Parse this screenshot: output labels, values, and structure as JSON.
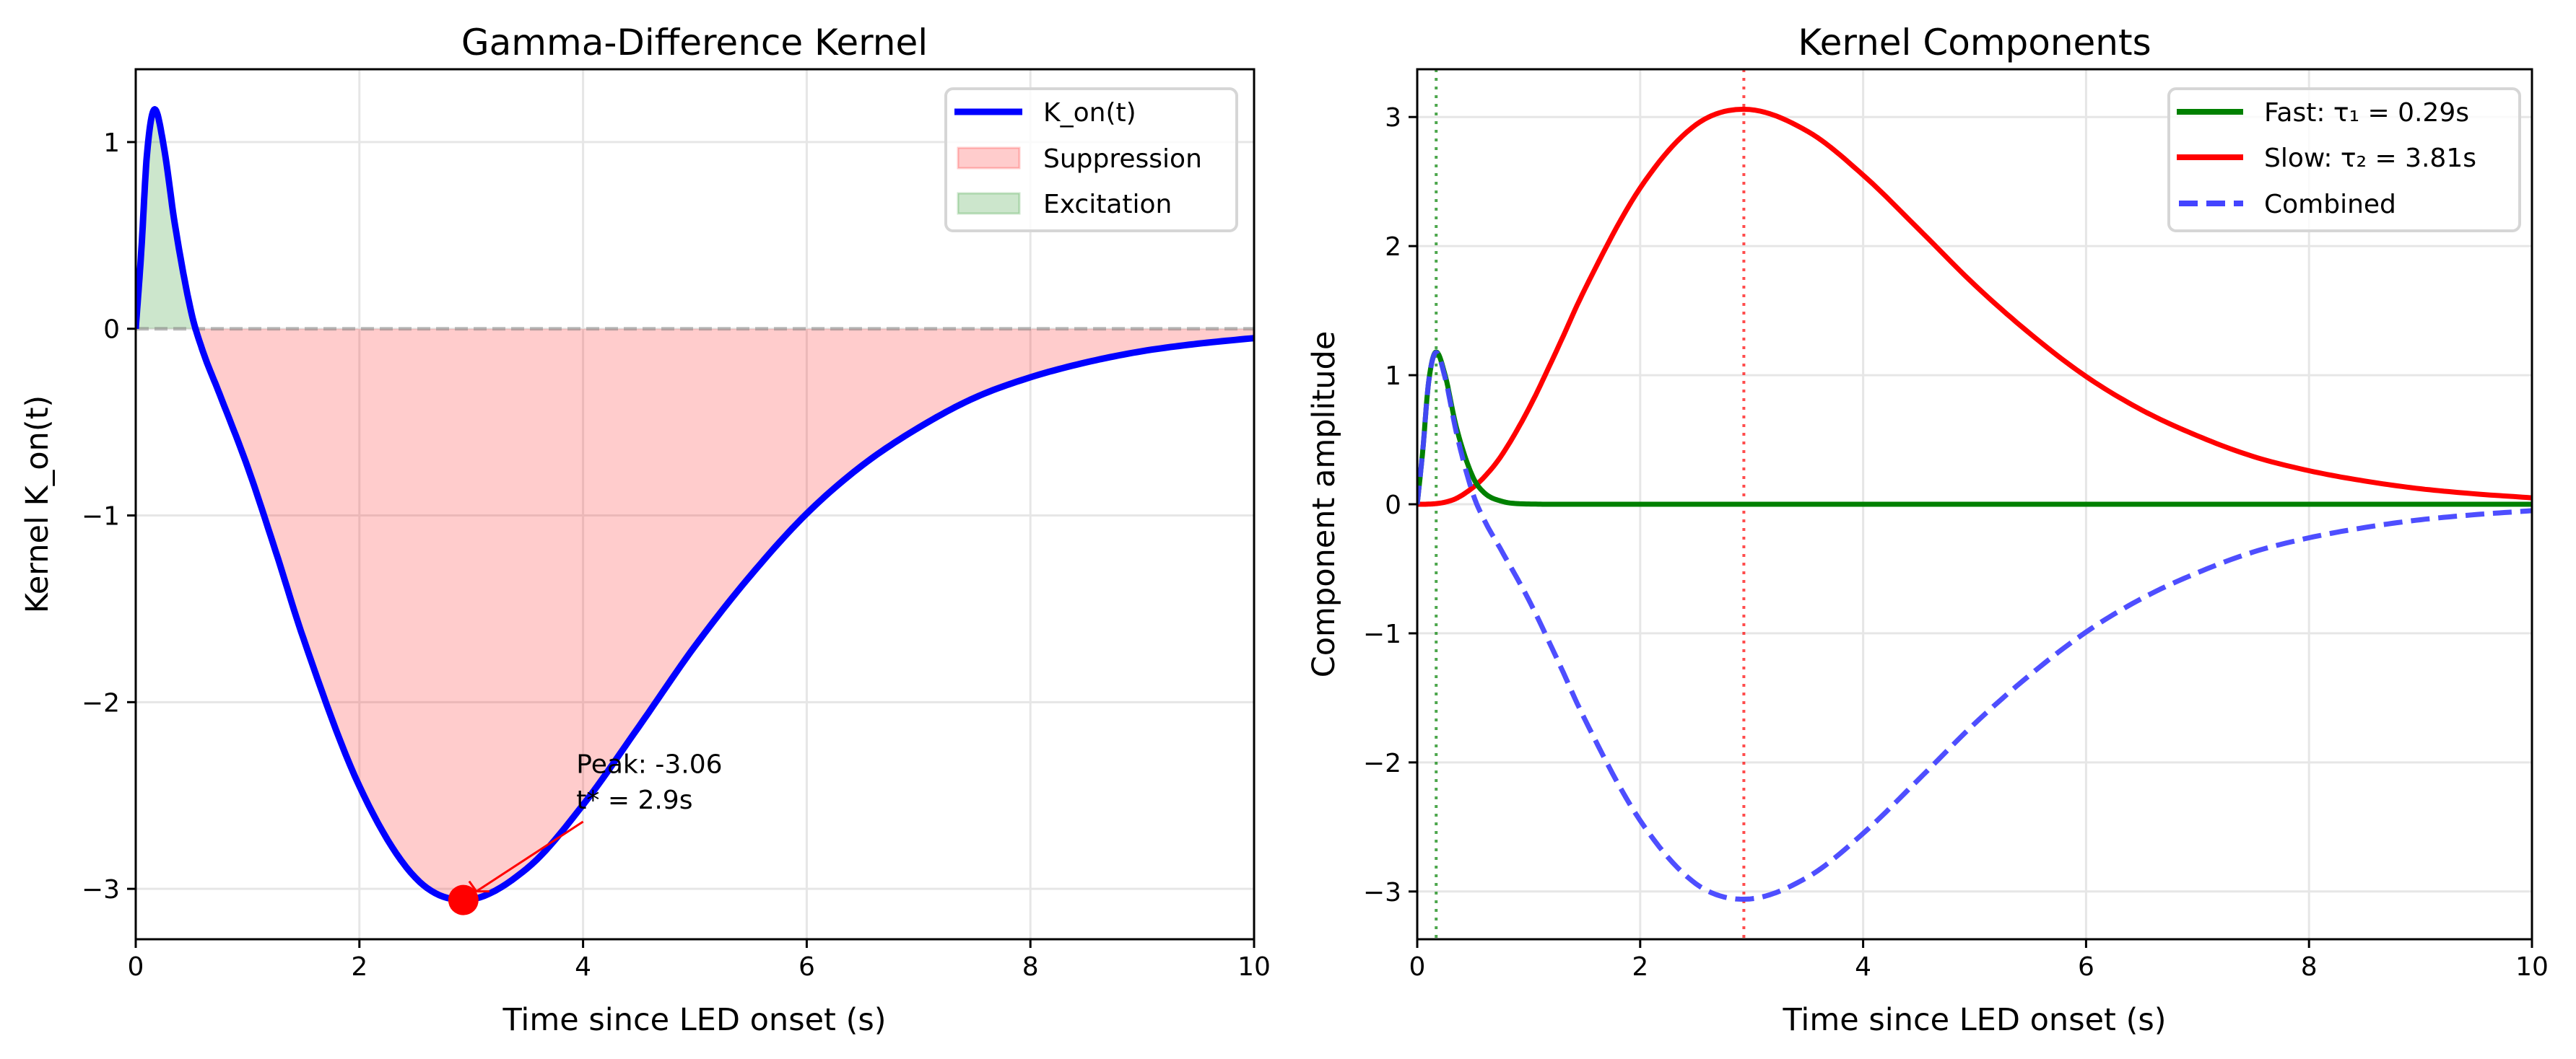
{
  "chart_data": [
    {
      "type": "line",
      "title": "Gamma-Difference Kernel",
      "xlabel": "Time since LED onset (s)",
      "ylabel": "Kernel K_on(t)",
      "xlim": [
        0,
        10
      ],
      "ylim": [
        -3.27,
        1.39
      ],
      "xticks": [
        0,
        2,
        4,
        6,
        8,
        10
      ],
      "yticks": [
        -3,
        -2,
        -1,
        0,
        1
      ],
      "xtick_labels": [
        "0",
        "2",
        "4",
        "6",
        "8",
        "10"
      ],
      "ytick_labels": [
        "−3",
        "−2",
        "−1",
        "0",
        "1"
      ],
      "grid": true,
      "legend_position": "upper right",
      "x": [
        0,
        0.05,
        0.1,
        0.17,
        0.25,
        0.35,
        0.5,
        0.6,
        0.75,
        1,
        1.25,
        1.5,
        2,
        2.5,
        2.93,
        3.5,
        4,
        4.5,
        5,
        5.5,
        6,
        6.5,
        7,
        7.5,
        8,
        8.5,
        9,
        9.5,
        10
      ],
      "series": [
        {
          "name": "K_on(t)",
          "color": "#0000ff",
          "style": "solid",
          "values": [
            0,
            0.42,
            0.93,
            1.175,
            0.98,
            0.56,
            0.08,
            -0.12,
            -0.35,
            -0.74,
            -1.19,
            -1.66,
            -2.45,
            -2.94,
            -3.06,
            -2.89,
            -2.55,
            -2.13,
            -1.7,
            -1.32,
            -0.99,
            -0.73,
            -0.53,
            -0.37,
            -0.26,
            -0.18,
            -0.12,
            -0.08,
            -0.05
          ]
        }
      ],
      "fills": [
        {
          "name": "Suppression",
          "color": "#ff0000",
          "region": "below zero"
        },
        {
          "name": "Excitation",
          "color": "#008000",
          "region": "above zero"
        }
      ],
      "reference_line": {
        "y": 0,
        "color": "#808080",
        "style": "dashed"
      },
      "annotation": {
        "lines": [
          "Peak: -3.06",
          "t* = 2.9s"
        ],
        "point": [
          2.93,
          -3.06
        ],
        "color": "#ff0000"
      }
    },
    {
      "type": "line",
      "title": "Kernel Components",
      "xlabel": "Time since LED onset (s)",
      "ylabel": "Component amplitude",
      "xlim": [
        0,
        10
      ],
      "ylim": [
        -3.37,
        3.37
      ],
      "xticks": [
        0,
        2,
        4,
        6,
        8,
        10
      ],
      "yticks": [
        -3,
        -2,
        -1,
        0,
        1,
        2,
        3
      ],
      "xtick_labels": [
        "0",
        "2",
        "4",
        "6",
        "8",
        "10"
      ],
      "ytick_labels": [
        "−3",
        "−2",
        "−1",
        "0",
        "1",
        "2",
        "3"
      ],
      "grid": true,
      "legend_position": "upper right",
      "x": [
        0,
        0.05,
        0.1,
        0.17,
        0.25,
        0.35,
        0.5,
        0.6,
        0.75,
        1,
        1.25,
        1.5,
        2,
        2.5,
        2.93,
        3.5,
        4,
        4.5,
        5,
        5.5,
        6,
        6.5,
        7,
        7.5,
        8,
        8.5,
        9,
        9.5,
        10
      ],
      "series": [
        {
          "name": "Fast: τ₁ = 0.29s",
          "color": "#008000",
          "style": "solid",
          "values": [
            0,
            0.42,
            0.93,
            1.18,
            1.0,
            0.6,
            0.21,
            0.09,
            0.025,
            0.002,
            0,
            0,
            0,
            0,
            0,
            0,
            0,
            0,
            0,
            0,
            0,
            0,
            0,
            0,
            0,
            0,
            0,
            0,
            0
          ]
        },
        {
          "name": "Slow: τ₂ = 3.81s",
          "color": "#ff0000",
          "style": "solid",
          "values": [
            0,
            0,
            0.001,
            0.005,
            0.016,
            0.045,
            0.13,
            0.21,
            0.37,
            0.74,
            1.19,
            1.66,
            2.45,
            2.94,
            3.06,
            2.89,
            2.55,
            2.13,
            1.7,
            1.32,
            0.99,
            0.73,
            0.53,
            0.37,
            0.26,
            0.18,
            0.12,
            0.08,
            0.05
          ]
        },
        {
          "name": "Combined",
          "color": "#4444ff",
          "style": "dashed",
          "values": [
            0,
            0.42,
            0.93,
            1.175,
            0.98,
            0.56,
            0.08,
            -0.12,
            -0.35,
            -0.74,
            -1.19,
            -1.66,
            -2.45,
            -2.94,
            -3.06,
            -2.89,
            -2.55,
            -2.13,
            -1.7,
            -1.32,
            -0.99,
            -0.73,
            -0.53,
            -0.37,
            -0.26,
            -0.18,
            -0.12,
            -0.08,
            -0.05
          ]
        }
      ],
      "vlines": [
        {
          "x": 0.17,
          "color": "#008000",
          "style": "dotted"
        },
        {
          "x": 2.93,
          "color": "#ff0000",
          "style": "dotted"
        }
      ]
    }
  ]
}
